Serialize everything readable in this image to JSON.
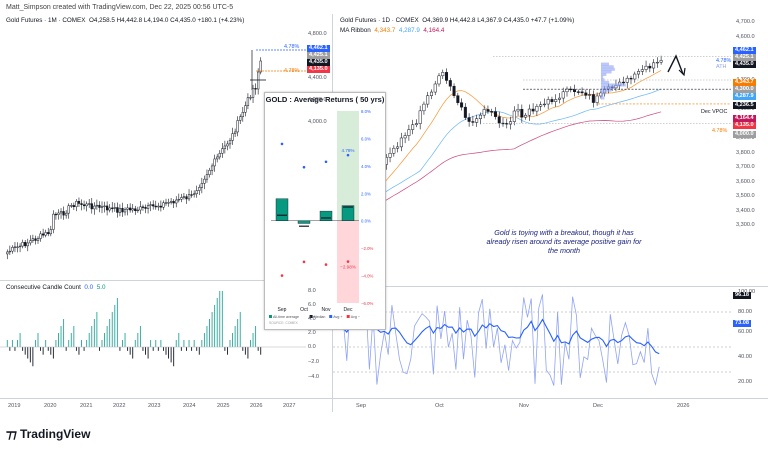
{
  "header": {
    "credit": "Matt_Simpson created with TradingView.com, Dec 22, 2025 00:56 UTC-5"
  },
  "left_chart": {
    "title": "Gold Futures · 1M · COMEX",
    "ohlc": "O4,258.5  H4,442.8  L4,194.0  C4,435.0  +180.1 (+4.23%)",
    "y_ticks": [
      "4,800.0",
      "4,600.0",
      "4,400.0",
      "4,200.0",
      "4,000.0"
    ],
    "price_tags": [
      {
        "label": "4,462.1",
        "color": "#2962ff"
      },
      {
        "label": "4,425.1",
        "color": "#9e9e9e"
      },
      {
        "label": "4,435.0",
        "color": "#131722"
      },
      {
        "label": "4,135.0",
        "color": "#f23645"
      }
    ],
    "annotations": [
      {
        "label": "4.78%",
        "color": "#2962ff"
      },
      {
        "label": "4.78%",
        "color": "#f57c00"
      }
    ],
    "x_ticks": [
      "2019",
      "2020",
      "2021",
      "2022",
      "2023",
      "2024",
      "2025",
      "2026",
      "2027"
    ]
  },
  "candle_count": {
    "title": "Consecutive Candle Count",
    "values_label": [
      "0.0",
      "5.0"
    ],
    "y_ticks": [
      "8.0",
      "6.0",
      "4.0",
      "2.0",
      "0.0",
      "−2.0",
      "−4.0"
    ]
  },
  "inset": {
    "title": "GOLD : Average Returns ( 50 yrs)",
    "y_ticks": [
      "8.0%",
      "6.0%",
      "4.0%",
      "2.0%",
      "0.0%",
      "−2.0%",
      "−4.0%",
      "−6.0%"
    ],
    "months": [
      "Sep",
      "Oct",
      "Nov",
      "Dec"
    ],
    "highlight_labels": [
      "4.78%",
      "−2.98%"
    ],
    "legend": [
      "All-time average",
      "Median",
      "Avg +",
      "Avg −"
    ],
    "source": "SOURCE: COMEX"
  },
  "right_chart": {
    "title": "Gold Futures · 1D · COMEX",
    "ohlc": "O4,369.9  H4,442.8  L4,367.9  C4,435.0  +47.7 (+1.09%)",
    "ribbon": {
      "name": "MA Ribbon",
      "v1": "4,343.7",
      "v2": "4,287.9",
      "v3": "4,164.4",
      "c1": "#f57c00",
      "c2": "#42a5f5",
      "c3": "#c2185b"
    },
    "y_ticks": [
      "4,700.0",
      "4,600.0",
      "4,500.0",
      "4,400.0",
      "4,300.0",
      "4,200.0",
      "4,100.0",
      "4,000.0",
      "3,900.0",
      "3,800.0",
      "3,700.0",
      "3,600.0",
      "3,500.0",
      "3,400.0",
      "3,300.0"
    ],
    "price_tags": [
      {
        "label": "4,462.1",
        "color": "#2962ff"
      },
      {
        "label": "4,425.1",
        "color": "#9e9e9e"
      },
      {
        "label": "4,435.0",
        "color": "#131722"
      },
      {
        "label": "4,343.7",
        "color": "#f57c00"
      },
      {
        "label": "4,300.0",
        "color": "#9e9e9e"
      },
      {
        "label": "4,287.9",
        "color": "#42a5f5"
      },
      {
        "label": "4,236.5",
        "color": "#131722"
      },
      {
        "label": "4,164.4",
        "color": "#c2185b"
      },
      {
        "label": "4,135.0",
        "color": "#f23645"
      },
      {
        "label": "4,000.0",
        "color": "#9e9e9e"
      }
    ],
    "annotations": {
      "ath": "ATH",
      "pct_up": "4.78%",
      "pct_down": "4.78%",
      "vpoc": "Dec VPOC"
    },
    "note": "Gold is toying with a breakout, though it has already risen around its average positive gain for the month",
    "x_ticks": [
      "Sep",
      "Oct",
      "Nov",
      "Dec",
      "2026"
    ],
    "osc_ticks": [
      "100.00",
      "80.00",
      "60.00",
      "40.00",
      "20.00"
    ],
    "osc_tags": [
      {
        "label": "96.18",
        "color": "#131722"
      },
      {
        "label": "73.08",
        "color": "#2962ff"
      }
    ]
  },
  "brand": {
    "logo": "TradingView"
  },
  "chart_data": [
    {
      "type": "bar",
      "title": "GOLD : Average Returns ( 50 yrs)",
      "categories": [
        "Sep",
        "Oct",
        "Nov",
        "Dec"
      ],
      "series": [
        {
          "name": "All-time average",
          "values": [
            1.6,
            -0.2,
            0.7,
            1.1
          ]
        },
        {
          "name": "Median",
          "values": [
            0.4,
            -0.4,
            0.2,
            1.0
          ]
        },
        {
          "name": "Avg +",
          "values": [
            5.6,
            3.9,
            4.3,
            4.78
          ]
        },
        {
          "name": "Avg −",
          "values": [
            -4.0,
            -3.0,
            -3.2,
            -2.98
          ]
        }
      ],
      "ylim": [
        -6.0,
        8.0
      ],
      "legend": "bottom",
      "highlight": {
        "category": "Dec",
        "up": 4.78,
        "down": -2.98
      }
    }
  ]
}
